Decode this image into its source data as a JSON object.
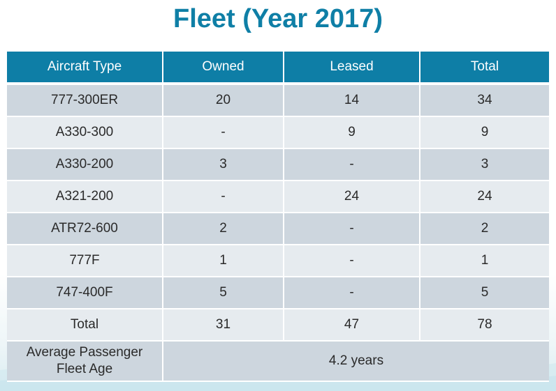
{
  "title": "Fleet (Year 2017)",
  "table": {
    "headers": [
      "Aircraft Type",
      "Owned",
      "Leased",
      "Total"
    ],
    "rows": [
      [
        "777-300ER",
        "20",
        "14",
        "34"
      ],
      [
        "A330-300",
        "-",
        "9",
        "9"
      ],
      [
        "A330-200",
        "3",
        "-",
        "3"
      ],
      [
        "A321-200",
        "-",
        "24",
        "24"
      ],
      [
        "ATR72-600",
        "2",
        "-",
        "2"
      ],
      [
        "777F",
        "1",
        "-",
        "1"
      ],
      [
        "747-400F",
        "5",
        "-",
        "5"
      ],
      [
        "Total",
        "31",
        "47",
        "78"
      ]
    ],
    "average": {
      "label_line1": "Average Passenger",
      "label_line2": "Fleet Age",
      "value": "4.2 years"
    }
  },
  "colors": {
    "title": "#0f7fa6",
    "header_bg": "#0e7ea6",
    "row_dark": "#cdd6de",
    "row_light": "#e6ebef"
  }
}
